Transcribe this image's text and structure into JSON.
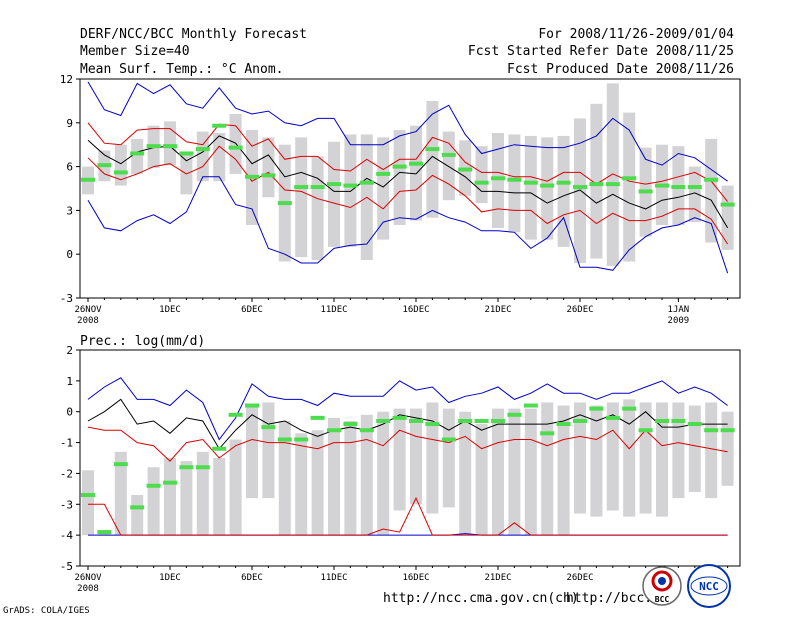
{
  "header": {
    "title": "DERF/NCC/BCC Monthly Forecast",
    "member_size": "Member Size=40",
    "variable": "Mean Surf. Temp.: °C Anom.",
    "period": "For 2008/11/26-2009/01/04",
    "start_date": "Fcst Started Refer Date 2008/11/25",
    "produced_date": "Fcst Produced Date 2008/11/26"
  },
  "footer": {
    "grads": "GrADS: COLA/IGES",
    "url_ncc": "http://ncc.cma.gov.cn(ch)",
    "url_bcc": "http://bcc.",
    "logo_bcc": "BCC",
    "logo_ncc": "NCC"
  },
  "colors": {
    "box": "#d3d3d6",
    "median": "#4ddc4d",
    "mean": "#000000",
    "spread": "#dd0000",
    "extreme": "#0000cc"
  },
  "chart_data": [
    {
      "type": "box",
      "title": "Mean Surf. Temp.: °C Anom.",
      "ylim": [
        -3,
        12
      ],
      "yticks": [
        -3,
        0,
        3,
        6,
        9,
        12
      ],
      "xtick_labels": [
        {
          "day": 0,
          "label": "26NOV",
          "sub": "2008"
        },
        {
          "day": 5,
          "label": "1DEC"
        },
        {
          "day": 10,
          "label": "6DEC"
        },
        {
          "day": 15,
          "label": "11DEC"
        },
        {
          "day": 20,
          "label": "16DEC"
        },
        {
          "day": 25,
          "label": "21DEC"
        },
        {
          "day": 30,
          "label": "26DEC"
        },
        {
          "day": 36,
          "label": "1JAN",
          "sub": "2009"
        }
      ],
      "days": 40,
      "box_low": [
        4.1,
        5.0,
        4.7,
        5.5,
        5.9,
        6.1,
        4.1,
        5.0,
        5.0,
        5.5,
        2.0,
        3.9,
        -0.5,
        -0.2,
        -0.4,
        0.5,
        0.5,
        -0.4,
        1.0,
        2.0,
        2.3,
        2.5,
        3.7,
        4.0,
        3.5,
        1.8,
        1.5,
        1.0,
        1.0,
        0.5,
        -0.6,
        -0.3,
        -0.8,
        -0.5,
        1.2,
        2.0,
        2.0,
        2.2,
        0.8,
        0.3
      ],
      "box_high": [
        6.0,
        7.1,
        7.5,
        7.9,
        8.8,
        9.1,
        7.0,
        8.4,
        8.3,
        9.6,
        8.5,
        8.0,
        7.5,
        8.0,
        6.7,
        7.7,
        8.2,
        8.2,
        8.0,
        8.5,
        8.8,
        10.5,
        8.4,
        7.8,
        7.4,
        8.3,
        8.2,
        8.1,
        8.0,
        8.1,
        9.3,
        10.3,
        11.7,
        9.7,
        7.3,
        7.5,
        7.4,
        6.0,
        7.9,
        4.7
      ],
      "median": [
        5.1,
        6.1,
        5.6,
        6.9,
        7.4,
        7.4,
        6.9,
        7.2,
        8.8,
        7.3,
        5.3,
        5.4,
        3.5,
        4.6,
        4.6,
        4.8,
        4.7,
        4.9,
        5.5,
        6.0,
        6.2,
        7.2,
        6.8,
        5.8,
        4.9,
        5.2,
        5.1,
        4.9,
        4.7,
        4.9,
        4.6,
        4.8,
        4.8,
        5.2,
        4.3,
        4.7,
        4.6,
        4.6,
        5.1,
        3.4
      ],
      "mean": [
        7.8,
        6.8,
        6.2,
        7.0,
        7.3,
        7.4,
        6.4,
        7.0,
        8.1,
        7.6,
        6.2,
        6.8,
        5.3,
        5.6,
        5.2,
        4.3,
        4.3,
        5.2,
        4.6,
        5.6,
        5.5,
        6.7,
        6.0,
        5.3,
        4.3,
        4.3,
        4.2,
        4.2,
        3.5,
        4.0,
        4.4,
        3.5,
        4.1,
        3.5,
        3.1,
        3.7,
        3.9,
        4.2,
        3.7,
        1.8
      ],
      "upper": [
        9.0,
        7.6,
        7.5,
        8.5,
        8.6,
        8.6,
        7.7,
        7.5,
        8.9,
        8.8,
        7.4,
        7.9,
        6.5,
        6.7,
        6.7,
        5.8,
        5.7,
        6.5,
        5.8,
        6.5,
        6.5,
        8.0,
        7.6,
        6.3,
        5.6,
        5.6,
        5.3,
        5.3,
        5.0,
        5.6,
        5.6,
        4.8,
        5.5,
        5.0,
        4.8,
        5.0,
        5.3,
        5.6,
        5.0,
        3.6
      ],
      "lower": [
        6.6,
        5.5,
        5.1,
        5.5,
        6.0,
        6.2,
        5.5,
        6.0,
        7.4,
        6.5,
        5.0,
        5.6,
        4.4,
        4.3,
        3.8,
        3.5,
        3.2,
        3.9,
        3.1,
        4.3,
        4.4,
        5.4,
        4.8,
        4.0,
        2.9,
        3.1,
        3.0,
        3.0,
        2.1,
        2.7,
        3.0,
        2.1,
        2.8,
        2.3,
        2.3,
        2.6,
        3.1,
        3.1,
        2.4,
        0.7
      ],
      "max": [
        11.8,
        9.9,
        9.5,
        11.7,
        11.0,
        11.6,
        10.3,
        10.0,
        11.4,
        10.0,
        9.6,
        9.8,
        9.0,
        8.8,
        9.3,
        9.3,
        7.5,
        7.5,
        7.5,
        8.1,
        8.4,
        9.6,
        10.2,
        8.2,
        6.9,
        7.2,
        7.5,
        7.4,
        7.3,
        7.3,
        7.6,
        8.1,
        9.3,
        8.5,
        6.5,
        6.1,
        6.9,
        6.6,
        5.8,
        5.0
      ],
      "min": [
        3.7,
        1.8,
        1.6,
        2.3,
        2.7,
        2.1,
        2.9,
        5.3,
        5.3,
        3.4,
        3.1,
        0.4,
        0.0,
        -0.6,
        -0.6,
        0.4,
        0.6,
        0.7,
        2.2,
        2.5,
        2.4,
        3.0,
        2.5,
        2.2,
        1.6,
        1.6,
        1.5,
        0.4,
        1.1,
        2.5,
        -0.9,
        -0.9,
        -1.1,
        0.3,
        1.2,
        1.8,
        2.0,
        2.5,
        2.1,
        -1.3
      ]
    },
    {
      "type": "box",
      "title": "Prec.: log(mm/d)",
      "ylim": [
        -5,
        2
      ],
      "yticks": [
        -5,
        -4,
        -3,
        -2,
        -1,
        0,
        1,
        2
      ],
      "xtick_labels": [
        {
          "day": 0,
          "label": "26NOV",
          "sub": "2008"
        },
        {
          "day": 5,
          "label": "1DEC"
        },
        {
          "day": 10,
          "label": "6DEC"
        },
        {
          "day": 15,
          "label": "11DEC"
        },
        {
          "day": 20,
          "label": "16DEC"
        },
        {
          "day": 25,
          "label": "21DEC"
        },
        {
          "day": 30,
          "label": "26DEC"
        }
      ],
      "days": 40,
      "box_low": [
        -4.0,
        -4.0,
        -4.0,
        -4.0,
        -4.0,
        -4.0,
        -4.0,
        -4.0,
        -4.0,
        -4.0,
        -2.8,
        -2.8,
        -4.0,
        -4.0,
        -4.0,
        -4.0,
        -4.0,
        -4.0,
        -4.0,
        -3.2,
        -3.0,
        -3.3,
        -3.1,
        -4.0,
        -4.0,
        -4.0,
        -4.0,
        -4.0,
        -4.0,
        -4.0,
        -3.3,
        -3.4,
        -3.2,
        -3.4,
        -3.3,
        -3.4,
        -2.8,
        -2.6,
        -2.8,
        -2.4
      ],
      "box_high": [
        -1.9,
        -3.9,
        -1.3,
        -2.7,
        -1.8,
        -1.5,
        -1.6,
        -1.3,
        -1.5,
        -0.9,
        0.2,
        0.3,
        -0.3,
        -0.7,
        -0.6,
        -0.2,
        -0.3,
        -0.1,
        0.0,
        0.1,
        0.1,
        0.3,
        0.1,
        0.0,
        -0.4,
        0.1,
        0.1,
        0.1,
        0.3,
        0.2,
        0.3,
        0.2,
        0.3,
        0.4,
        0.3,
        0.3,
        0.3,
        0.2,
        0.3,
        0.0
      ],
      "median": [
        -2.7,
        -3.9,
        -1.7,
        -3.1,
        -2.4,
        -2.3,
        -1.8,
        -1.8,
        -1.2,
        -0.1,
        0.2,
        -0.5,
        -0.9,
        -0.9,
        -0.2,
        -0.6,
        -0.4,
        -0.6,
        -0.3,
        -0.2,
        -0.3,
        -0.4,
        -0.9,
        -0.3,
        -0.3,
        -0.3,
        -0.1,
        0.2,
        -0.7,
        -0.4,
        -0.3,
        0.1,
        -0.2,
        0.1,
        -0.6,
        -0.3,
        -0.3,
        -0.4,
        -0.6,
        -0.6
      ],
      "mean": [
        -0.3,
        0.0,
        0.4,
        -0.4,
        -0.3,
        -0.7,
        -0.2,
        -0.3,
        -1.2,
        -0.6,
        -0.1,
        -0.4,
        -0.3,
        -0.6,
        -0.8,
        -0.6,
        -0.5,
        -0.6,
        -0.4,
        -0.1,
        -0.2,
        -0.3,
        -0.6,
        -0.3,
        -0.6,
        -0.4,
        -0.4,
        -0.4,
        -0.4,
        -0.3,
        -0.1,
        -0.3,
        -0.1,
        -0.4,
        0.0,
        -0.5,
        -0.5,
        -0.4,
        -0.4,
        -0.4
      ],
      "upper": [
        -0.5,
        -0.6,
        -0.6,
        -1.0,
        -1.1,
        -1.6,
        -1.0,
        -0.9,
        -1.5,
        -1.1,
        -0.9,
        -1.0,
        -1.0,
        -1.1,
        -1.2,
        -1.0,
        -1.0,
        -0.9,
        -1.1,
        -0.6,
        -0.8,
        -0.9,
        -1.0,
        -0.8,
        -1.2,
        -1.0,
        -0.9,
        -0.9,
        -1.1,
        -0.9,
        -0.8,
        -0.9,
        -0.6,
        -1.2,
        -0.6,
        -1.1,
        -1.0,
        -1.1,
        -1.2,
        -1.3
      ],
      "lower": [
        -3.0,
        -3.0,
        -4.0,
        -4.0,
        -4.0,
        -4.0,
        -4.0,
        -4.0,
        -4.0,
        -4.0,
        -4.0,
        -4.0,
        -4.0,
        -4.0,
        -4.0,
        -4.0,
        -4.0,
        -4.0,
        -3.8,
        -3.9,
        -2.8,
        -4.0,
        -4.0,
        -4.0,
        -4.0,
        -4.0,
        -3.6,
        -4.0,
        -4.0,
        -4.0,
        -4.0,
        -4.0,
        -4.0,
        -4.0,
        -4.0,
        -4.0,
        -4.0,
        -4.0,
        -4.0,
        -4.0
      ],
      "max": [
        0.4,
        0.8,
        1.1,
        0.4,
        0.4,
        0.2,
        0.7,
        0.3,
        -0.9,
        -0.2,
        0.9,
        0.5,
        0.4,
        0.4,
        0.2,
        0.6,
        0.5,
        0.5,
        0.5,
        1.0,
        0.7,
        0.8,
        0.3,
        0.5,
        0.6,
        0.8,
        0.4,
        0.6,
        0.9,
        0.6,
        0.6,
        0.4,
        0.6,
        0.6,
        0.8,
        1.0,
        0.6,
        0.8,
        0.6,
        0.2
      ],
      "min": [
        -4.0,
        -4.0,
        -4.0,
        -4.0,
        -4.0,
        -4.0,
        -4.0,
        -4.0,
        -4.0,
        -4.0,
        -4.0,
        -4.0,
        -4.0,
        -4.0,
        -4.0,
        -4.0,
        -4.0,
        -4.0,
        -4.0,
        -4.0,
        -4.0,
        -4.0,
        -4.0,
        -3.95,
        -4.0,
        -4.0,
        -4.0,
        -4.0,
        -4.0,
        -4.0,
        -4.0,
        -4.0,
        -4.0,
        -4.0,
        -4.0,
        -4.0,
        -4.0,
        -4.0,
        -4.0,
        -4.0
      ]
    }
  ]
}
